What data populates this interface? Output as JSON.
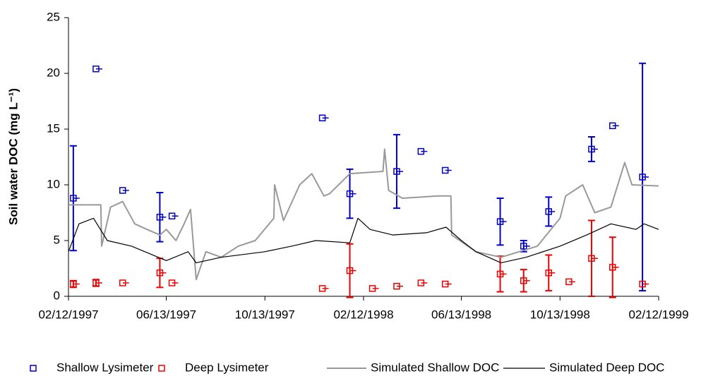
{
  "chart_data": {
    "type": "scatter",
    "y_label": "Soil water DOC (mg L⁻¹)",
    "xlim": [
      "02/12/1997",
      "02/12/1999"
    ],
    "xticks": [
      "02/12/1997",
      "06/13/1997",
      "10/13/1997",
      "02/12/1998",
      "06/13/1998",
      "10/13/1998",
      "02/12/1999"
    ],
    "ylim": [
      0,
      25
    ],
    "yticks": [
      0,
      5,
      10,
      15,
      20,
      25
    ],
    "series": [
      {
        "name": "Shallow Lysimeter",
        "type": "scatter",
        "color": "#0000cc",
        "x": [
          "02/18/1997",
          "03/18/1997",
          "04/20/1997",
          "06/05/1997",
          "06/20/1997",
          "12/23/1997",
          "01/26/1998",
          "03/25/1998",
          "04/24/1998",
          "05/24/1998",
          "07/31/1998",
          "08/29/1998",
          "09/29/1998",
          "11/21/1998",
          "12/17/1998",
          "01/23/1999"
        ],
        "values": [
          8.8,
          20.4,
          9.5,
          7.1,
          7.2,
          16.0,
          9.2,
          11.2,
          13.0,
          11.3,
          6.7,
          4.5,
          7.6,
          13.2,
          15.3,
          10.7
        ],
        "errors": [
          4.7,
          null,
          null,
          2.2,
          null,
          null,
          2.2,
          3.3,
          null,
          null,
          2.1,
          0.5,
          1.3,
          1.1,
          null,
          10.2
        ]
      },
      {
        "name": "Deep Lysimeter",
        "type": "scatter",
        "color": "#ee0000",
        "x": [
          "02/18/1997",
          "03/18/1997",
          "04/20/1997",
          "06/05/1997",
          "06/20/1997",
          "12/23/1997",
          "01/26/1998",
          "02/23/1998",
          "03/25/1998",
          "04/24/1998",
          "05/24/1998",
          "07/31/1998",
          "08/29/1998",
          "09/29/1998",
          "10/24/1998",
          "11/21/1998",
          "12/17/1998",
          "01/23/1999"
        ],
        "values": [
          1.1,
          1.2,
          1.2,
          2.1,
          1.2,
          0.7,
          2.3,
          0.7,
          0.9,
          1.2,
          1.1,
          2.0,
          1.4,
          2.1,
          1.3,
          3.4,
          2.6,
          1.1
        ],
        "errors": [
          0.3,
          0.3,
          null,
          1.3,
          null,
          null,
          2.4,
          null,
          null,
          null,
          null,
          1.6,
          1.0,
          1.6,
          null,
          3.4,
          2.7,
          null
        ]
      },
      {
        "name": "Simulated Shallow DOC",
        "type": "line",
        "color": "#999999",
        "x": [
          "02/12/1997",
          "03/24/1997",
          "03/25/1997",
          "04/05/1997",
          "04/20/1997",
          "05/05/1997",
          "05/20/1997",
          "06/05/1997",
          "06/13/1997",
          "06/25/1997",
          "07/05/1997",
          "07/13/1997",
          "07/20/1997",
          "08/01/1997",
          "08/20/1997",
          "09/10/1997",
          "10/01/1997",
          "10/24/1997",
          "10/25/1997",
          "11/05/1997",
          "11/25/1997",
          "12/10/1997",
          "12/25/1997",
          "01/01/1998",
          "01/26/1998",
          "03/08/1998",
          "03/10/1998",
          "03/15/1998",
          "04/01/1998",
          "05/15/1998",
          "05/31/1998",
          "06/01/1998",
          "07/01/1998",
          "08/01/1998",
          "09/15/1998",
          "10/13/1998",
          "10/20/1998",
          "11/10/1998",
          "11/25/1998",
          "12/15/1998",
          "01/01/1999",
          "01/10/1999",
          "02/12/1999"
        ],
        "values": [
          8.2,
          8.2,
          4.5,
          8.0,
          8.5,
          6.5,
          6.0,
          5.5,
          6.0,
          5.0,
          6.5,
          7.8,
          1.5,
          4.0,
          3.5,
          4.5,
          5.0,
          7.0,
          10.0,
          6.8,
          10.0,
          11.0,
          9.0,
          9.2,
          11.0,
          11.2,
          13.2,
          9.5,
          8.8,
          9.0,
          9.0,
          5.5,
          4.0,
          3.5,
          4.5,
          7.0,
          9.0,
          10.0,
          7.5,
          8.0,
          12.0,
          10.0,
          9.9
        ]
      },
      {
        "name": "Simulated Deep DOC",
        "type": "line",
        "color": "#000000",
        "x": [
          "02/12/1997",
          "02/25/1997",
          "03/15/1997",
          "04/01/1997",
          "05/01/1997",
          "06/13/1997",
          "07/10/1997",
          "07/20/1997",
          "08/20/1997",
          "10/13/1997",
          "11/15/1997",
          "12/15/1997",
          "01/26/1998",
          "02/05/1998",
          "02/20/1998",
          "03/20/1998",
          "05/01/1998",
          "05/25/1998",
          "06/13/1998",
          "07/01/1998",
          "08/01/1998",
          "09/01/1998",
          "10/13/1998",
          "11/15/1998",
          "12/15/1998",
          "01/15/1999",
          "01/25/1999",
          "02/12/1999"
        ],
        "values": [
          4.0,
          6.5,
          7.0,
          5.0,
          4.5,
          3.2,
          4.0,
          3.0,
          3.5,
          4.0,
          4.5,
          5.0,
          4.8,
          7.0,
          6.0,
          5.5,
          5.7,
          6.2,
          5.0,
          4.0,
          3.0,
          3.5,
          4.5,
          5.5,
          6.5,
          6.0,
          6.5,
          6.0
        ]
      }
    ]
  }
}
